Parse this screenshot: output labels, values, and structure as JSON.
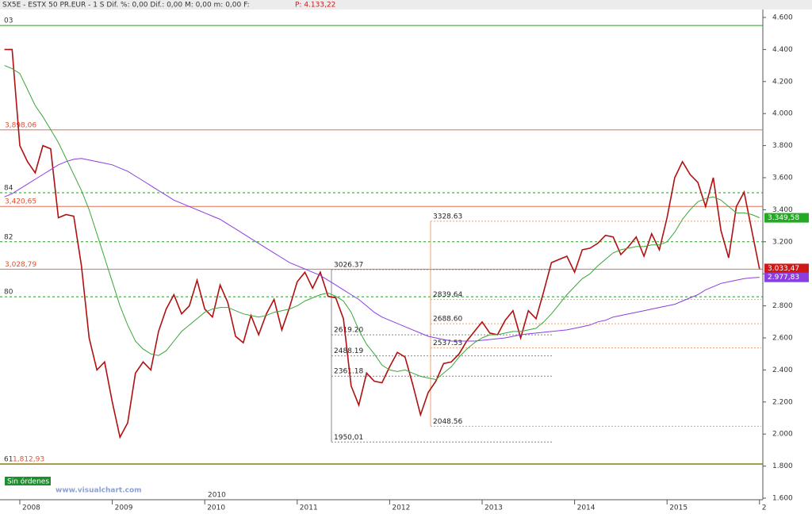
{
  "header": {
    "text": "SX5E - ESTX 50 PR.EUR - 1 S Dif. %: 0,00 Dif.: 0,00 M: 0,00 m: 0,00 F:",
    "last_label": "P: 4.133,22"
  },
  "chart_data": {
    "type": "line",
    "categories": [
      null,
      null,
      "2008",
      null,
      null,
      null,
      null,
      null,
      null,
      null,
      null,
      null,
      null,
      null,
      "2009",
      null,
      null,
      null,
      null,
      null,
      null,
      null,
      null,
      null,
      null,
      null,
      "2010",
      null,
      null,
      null,
      null,
      null,
      null,
      null,
      null,
      null,
      null,
      null,
      "2011",
      null,
      null,
      null,
      null,
      null,
      null,
      null,
      null,
      null,
      null,
      null,
      "2012",
      null,
      null,
      null,
      null,
      null,
      null,
      null,
      null,
      null,
      null,
      null,
      "2013",
      null,
      null,
      null,
      null,
      null,
      null,
      null,
      null,
      null,
      null,
      null,
      "2014",
      null,
      null,
      null,
      null,
      null,
      null,
      null,
      null,
      null,
      null,
      null,
      "2015",
      null,
      null,
      null,
      null,
      null,
      null,
      null,
      null,
      null,
      null,
      null,
      "2"
    ],
    "series": [
      {
        "color": "#b01010",
        "values": [
          4400,
          4400,
          3800,
          3700,
          3630,
          3800,
          3780,
          3350,
          3370,
          3360,
          3050,
          2600,
          2400,
          2450,
          2200,
          1980,
          2070,
          2380,
          2450,
          2400,
          2640,
          2780,
          2870,
          2750,
          2800,
          2960,
          2780,
          2730,
          2930,
          2820,
          2610,
          2570,
          2740,
          2620,
          2750,
          2840,
          2650,
          2790,
          2950,
          3010,
          2910,
          3010,
          2860,
          2850,
          2720,
          2300,
          2180,
          2380,
          2330,
          2320,
          2420,
          2510,
          2480,
          2310,
          2120,
          2260,
          2330,
          2440,
          2450,
          2500,
          2580,
          2640,
          2700,
          2630,
          2620,
          2710,
          2770,
          2600,
          2770,
          2720,
          2890,
          3070,
          3090,
          3110,
          3010,
          3150,
          3160,
          3190,
          3240,
          3230,
          3120,
          3170,
          3230,
          3110,
          3250,
          3150,
          3350,
          3600,
          3700,
          3620,
          3570,
          3420,
          3600,
          3270,
          3100,
          3420,
          3510,
          3270,
          3030
        ]
      },
      {
        "color": "#8a3ee0",
        "values": [
          3480,
          3500,
          3530,
          3560,
          3590,
          3620,
          3650,
          3680,
          3700,
          3715,
          3720,
          3710,
          3700,
          3690,
          3680,
          3660,
          3640,
          3610,
          3580,
          3550,
          3520,
          3490,
          3460,
          3440,
          3420,
          3400,
          3380,
          3360,
          3340,
          3310,
          3280,
          3250,
          3220,
          3190,
          3160,
          3130,
          3100,
          3070,
          3050,
          3030,
          3010,
          2990,
          2960,
          2930,
          2900,
          2870,
          2840,
          2800,
          2760,
          2730,
          2710,
          2690,
          2670,
          2650,
          2630,
          2610,
          2600,
          2590,
          2580,
          2580,
          2580,
          2580,
          2585,
          2590,
          2595,
          2600,
          2610,
          2620,
          2625,
          2630,
          2635,
          2640,
          2645,
          2650,
          2660,
          2670,
          2680,
          2700,
          2710,
          2730,
          2740,
          2750,
          2760,
          2770,
          2780,
          2790,
          2800,
          2810,
          2830,
          2850,
          2870,
          2900,
          2920,
          2940,
          2950,
          2960,
          2970,
          2975,
          2978
        ]
      },
      {
        "color": "#3aa63a",
        "values": [
          4300,
          4280,
          4250,
          4150,
          4050,
          3980,
          3900,
          3820,
          3720,
          3620,
          3520,
          3400,
          3250,
          3100,
          2950,
          2800,
          2680,
          2580,
          2530,
          2500,
          2490,
          2520,
          2580,
          2640,
          2680,
          2720,
          2760,
          2780,
          2790,
          2790,
          2770,
          2750,
          2740,
          2730,
          2740,
          2760,
          2770,
          2780,
          2800,
          2830,
          2850,
          2870,
          2880,
          2860,
          2830,
          2760,
          2650,
          2560,
          2500,
          2430,
          2400,
          2390,
          2400,
          2380,
          2360,
          2350,
          2340,
          2380,
          2420,
          2480,
          2530,
          2570,
          2600,
          2620,
          2620,
          2630,
          2640,
          2640,
          2650,
          2660,
          2700,
          2750,
          2810,
          2870,
          2920,
          2970,
          3000,
          3050,
          3090,
          3130,
          3150,
          3160,
          3170,
          3170,
          3180,
          3180,
          3200,
          3260,
          3340,
          3400,
          3450,
          3470,
          3480,
          3460,
          3420,
          3380,
          3380,
          3370,
          3350
        ]
      }
    ],
    "ylim": [
      1600,
      4600
    ],
    "yticks": [
      {
        "value": 1600,
        "label": "1.600"
      },
      {
        "value": 1800,
        "label": "1.800"
      },
      {
        "value": 2000,
        "label": "2.000"
      },
      {
        "value": 2200,
        "label": "2.200"
      },
      {
        "value": 2400,
        "label": "2.400"
      },
      {
        "value": 2600,
        "label": "2.600"
      },
      {
        "value": 2800,
        "label": "2.800"
      },
      {
        "value": 3000,
        "label": "3.000"
      },
      {
        "value": 3200,
        "label": "3.200"
      },
      {
        "value": 3400,
        "label": "3.400"
      },
      {
        "value": 3600,
        "label": "3.600"
      },
      {
        "value": 3800,
        "label": "3.800"
      },
      {
        "value": 4000,
        "label": "4.000"
      },
      {
        "value": 4200,
        "label": "4.200"
      },
      {
        "value": 4400,
        "label": "4.400"
      },
      {
        "value": 4600,
        "label": "4.600"
      }
    ],
    "levels": [
      {
        "name": "03",
        "value": 4550,
        "color": "#2a9a2a",
        "dash": false
      },
      {
        "value": 3898.06,
        "label": "3,898,06",
        "color": "#e07050",
        "dash": false
      },
      {
        "name": "84",
        "value": 3506,
        "color": "#2a9a2a",
        "dash": true
      },
      {
        "value": 3420.65,
        "label": "3,420,65",
        "color": "#e07050",
        "dash": false
      },
      {
        "name": "82",
        "value": 3200,
        "color": "#2a9a2a",
        "dash": true
      },
      {
        "value": 3028.79,
        "label": "3,028,79",
        "color": "#e07050",
        "dash": false
      },
      {
        "name": "80",
        "value": 2857,
        "color": "#2a9a2a",
        "dash": true
      },
      {
        "name": "61",
        "value": 1812.93,
        "label": "1,812,93",
        "color": "#8a7a10",
        "dash": false
      }
    ],
    "fib_left": [
      {
        "value": 3026.37,
        "label": "3026.37"
      },
      {
        "value": 2619.2,
        "label": "2619.20"
      },
      {
        "value": 2488.19,
        "label": "2488.19"
      },
      {
        "value": 2361.18,
        "label": "2361.18"
      },
      {
        "value": 1950.01,
        "label": "1950,01"
      }
    ],
    "fib_right": [
      {
        "value": 3328.63,
        "label": "3328.63"
      },
      {
        "value": 2839.64,
        "label": "2839.64"
      },
      {
        "value": 2688.6,
        "label": "2688.60"
      },
      {
        "value": 2537.53,
        "label": "2537.53"
      },
      {
        "value": 2048.56,
        "label": "2048.56"
      }
    ],
    "price_tags": [
      {
        "value": 3349.58,
        "label": "3.349,58",
        "color": "#22aa22"
      },
      {
        "value": 3033.47,
        "label": "3.033,47",
        "color": "#d01818"
      },
      {
        "value": 2977.83,
        "label": "2.977,83",
        "color": "#8a3ee0"
      }
    ],
    "status": "Sin órdenes",
    "watermark": "www.visualchart.com",
    "axis_marker": "2010"
  }
}
